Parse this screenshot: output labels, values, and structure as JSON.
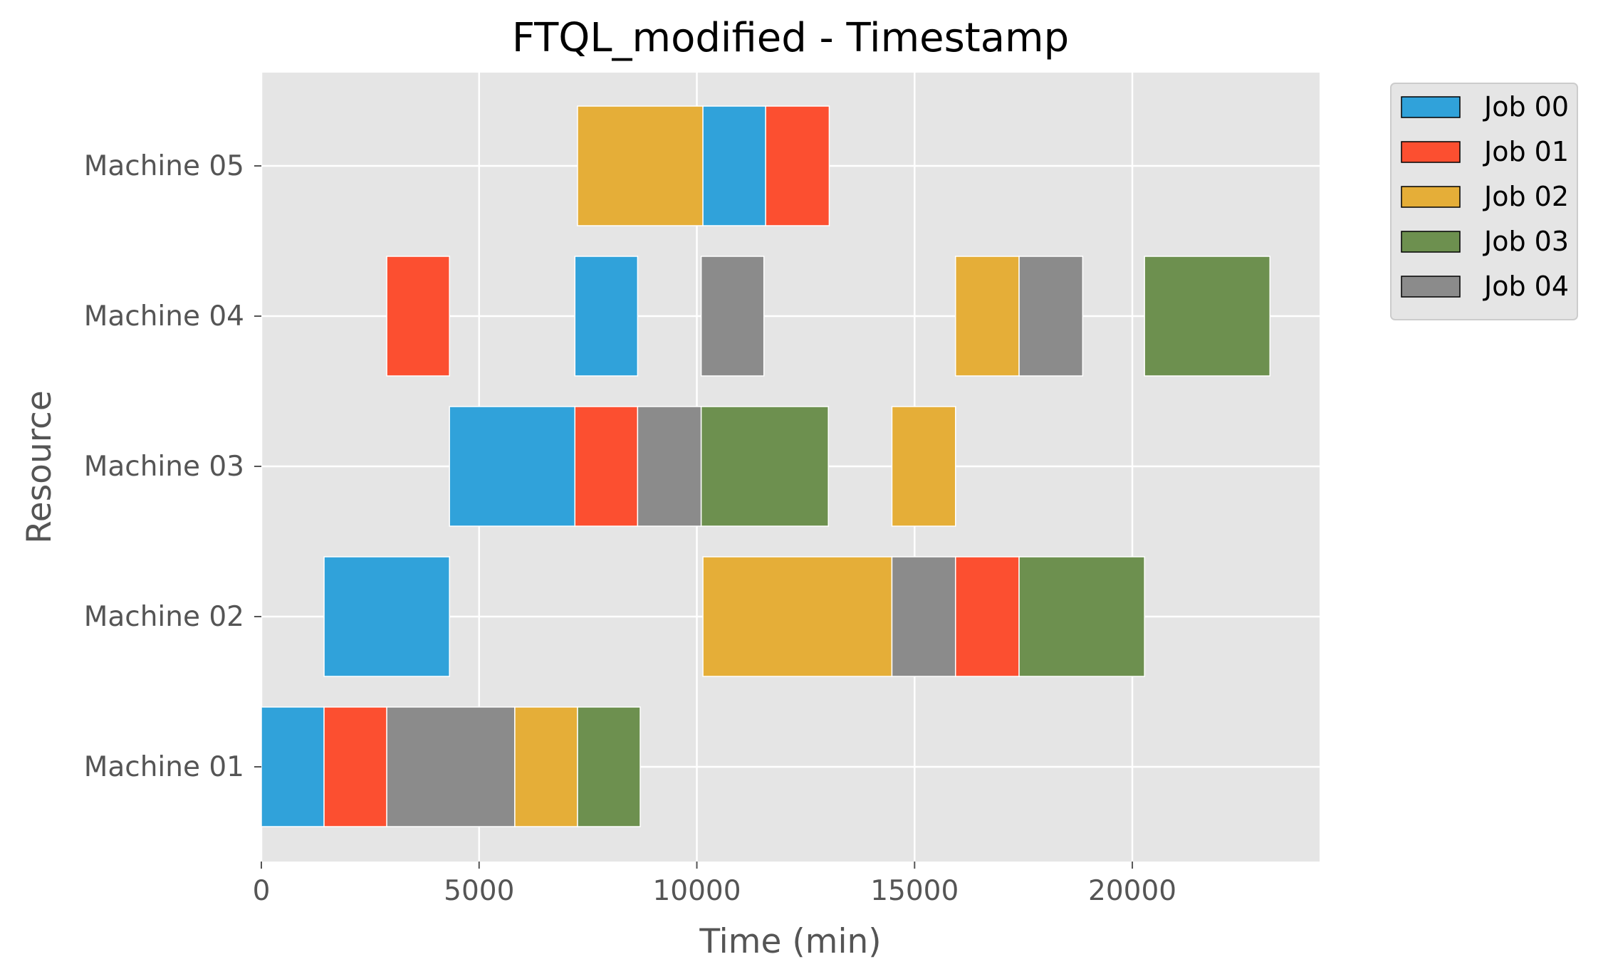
{
  "chart_data": {
    "type": "gantt",
    "title": "FTQL_modified - Timestamp",
    "xlabel": "Time (min)",
    "ylabel": "Resource",
    "xlim": [
      0,
      24300
    ],
    "x_ticks": [
      0,
      5000,
      10000,
      15000,
      20000
    ],
    "x_tick_labels": [
      "0",
      "5000",
      "10000",
      "15000",
      "20000"
    ],
    "resources": [
      "Machine 01",
      "Machine 02",
      "Machine 03",
      "Machine 04",
      "Machine 05"
    ],
    "grid": true,
    "legend_position": "outside top-right",
    "jobs": [
      {
        "name": "Job 00",
        "color": "#30a2da"
      },
      {
        "name": "Job 01",
        "color": "#fc4f30"
      },
      {
        "name": "Job 02",
        "color": "#e5ae38"
      },
      {
        "name": "Job 03",
        "color": "#6d904f"
      },
      {
        "name": "Job 04",
        "color": "#8b8b8b"
      }
    ],
    "tasks": [
      {
        "resource": "Machine 01",
        "job": "Job 00",
        "start": 0,
        "end": 1440
      },
      {
        "resource": "Machine 01",
        "job": "Job 01",
        "start": 1440,
        "end": 2880
      },
      {
        "resource": "Machine 01",
        "job": "Job 04",
        "start": 2880,
        "end": 5820
      },
      {
        "resource": "Machine 01",
        "job": "Job 02",
        "start": 5820,
        "end": 7260
      },
      {
        "resource": "Machine 01",
        "job": "Job 03",
        "start": 7260,
        "end": 8700
      },
      {
        "resource": "Machine 02",
        "job": "Job 00",
        "start": 1440,
        "end": 4320
      },
      {
        "resource": "Machine 02",
        "job": "Job 02",
        "start": 10140,
        "end": 14480
      },
      {
        "resource": "Machine 02",
        "job": "Job 04",
        "start": 14480,
        "end": 15940
      },
      {
        "resource": "Machine 02",
        "job": "Job 01",
        "start": 15940,
        "end": 17400
      },
      {
        "resource": "Machine 02",
        "job": "Job 03",
        "start": 17400,
        "end": 20280
      },
      {
        "resource": "Machine 03",
        "job": "Job 00",
        "start": 4320,
        "end": 7200
      },
      {
        "resource": "Machine 03",
        "job": "Job 01",
        "start": 7200,
        "end": 8640
      },
      {
        "resource": "Machine 03",
        "job": "Job 04",
        "start": 8640,
        "end": 10100
      },
      {
        "resource": "Machine 03",
        "job": "Job 03",
        "start": 10100,
        "end": 13020
      },
      {
        "resource": "Machine 03",
        "job": "Job 02",
        "start": 14480,
        "end": 15940
      },
      {
        "resource": "Machine 04",
        "job": "Job 01",
        "start": 2880,
        "end": 4320
      },
      {
        "resource": "Machine 04",
        "job": "Job 00",
        "start": 7200,
        "end": 8640
      },
      {
        "resource": "Machine 04",
        "job": "Job 04",
        "start": 10100,
        "end": 11540
      },
      {
        "resource": "Machine 04",
        "job": "Job 02",
        "start": 15940,
        "end": 17400
      },
      {
        "resource": "Machine 04",
        "job": "Job 04",
        "start": 17400,
        "end": 18860
      },
      {
        "resource": "Machine 04",
        "job": "Job 03",
        "start": 20280,
        "end": 23160
      },
      {
        "resource": "Machine 05",
        "job": "Job 02",
        "start": 7260,
        "end": 10140
      },
      {
        "resource": "Machine 05",
        "job": "Job 00",
        "start": 10140,
        "end": 11580
      },
      {
        "resource": "Machine 05",
        "job": "Job 01",
        "start": 11580,
        "end": 13040
      }
    ]
  }
}
